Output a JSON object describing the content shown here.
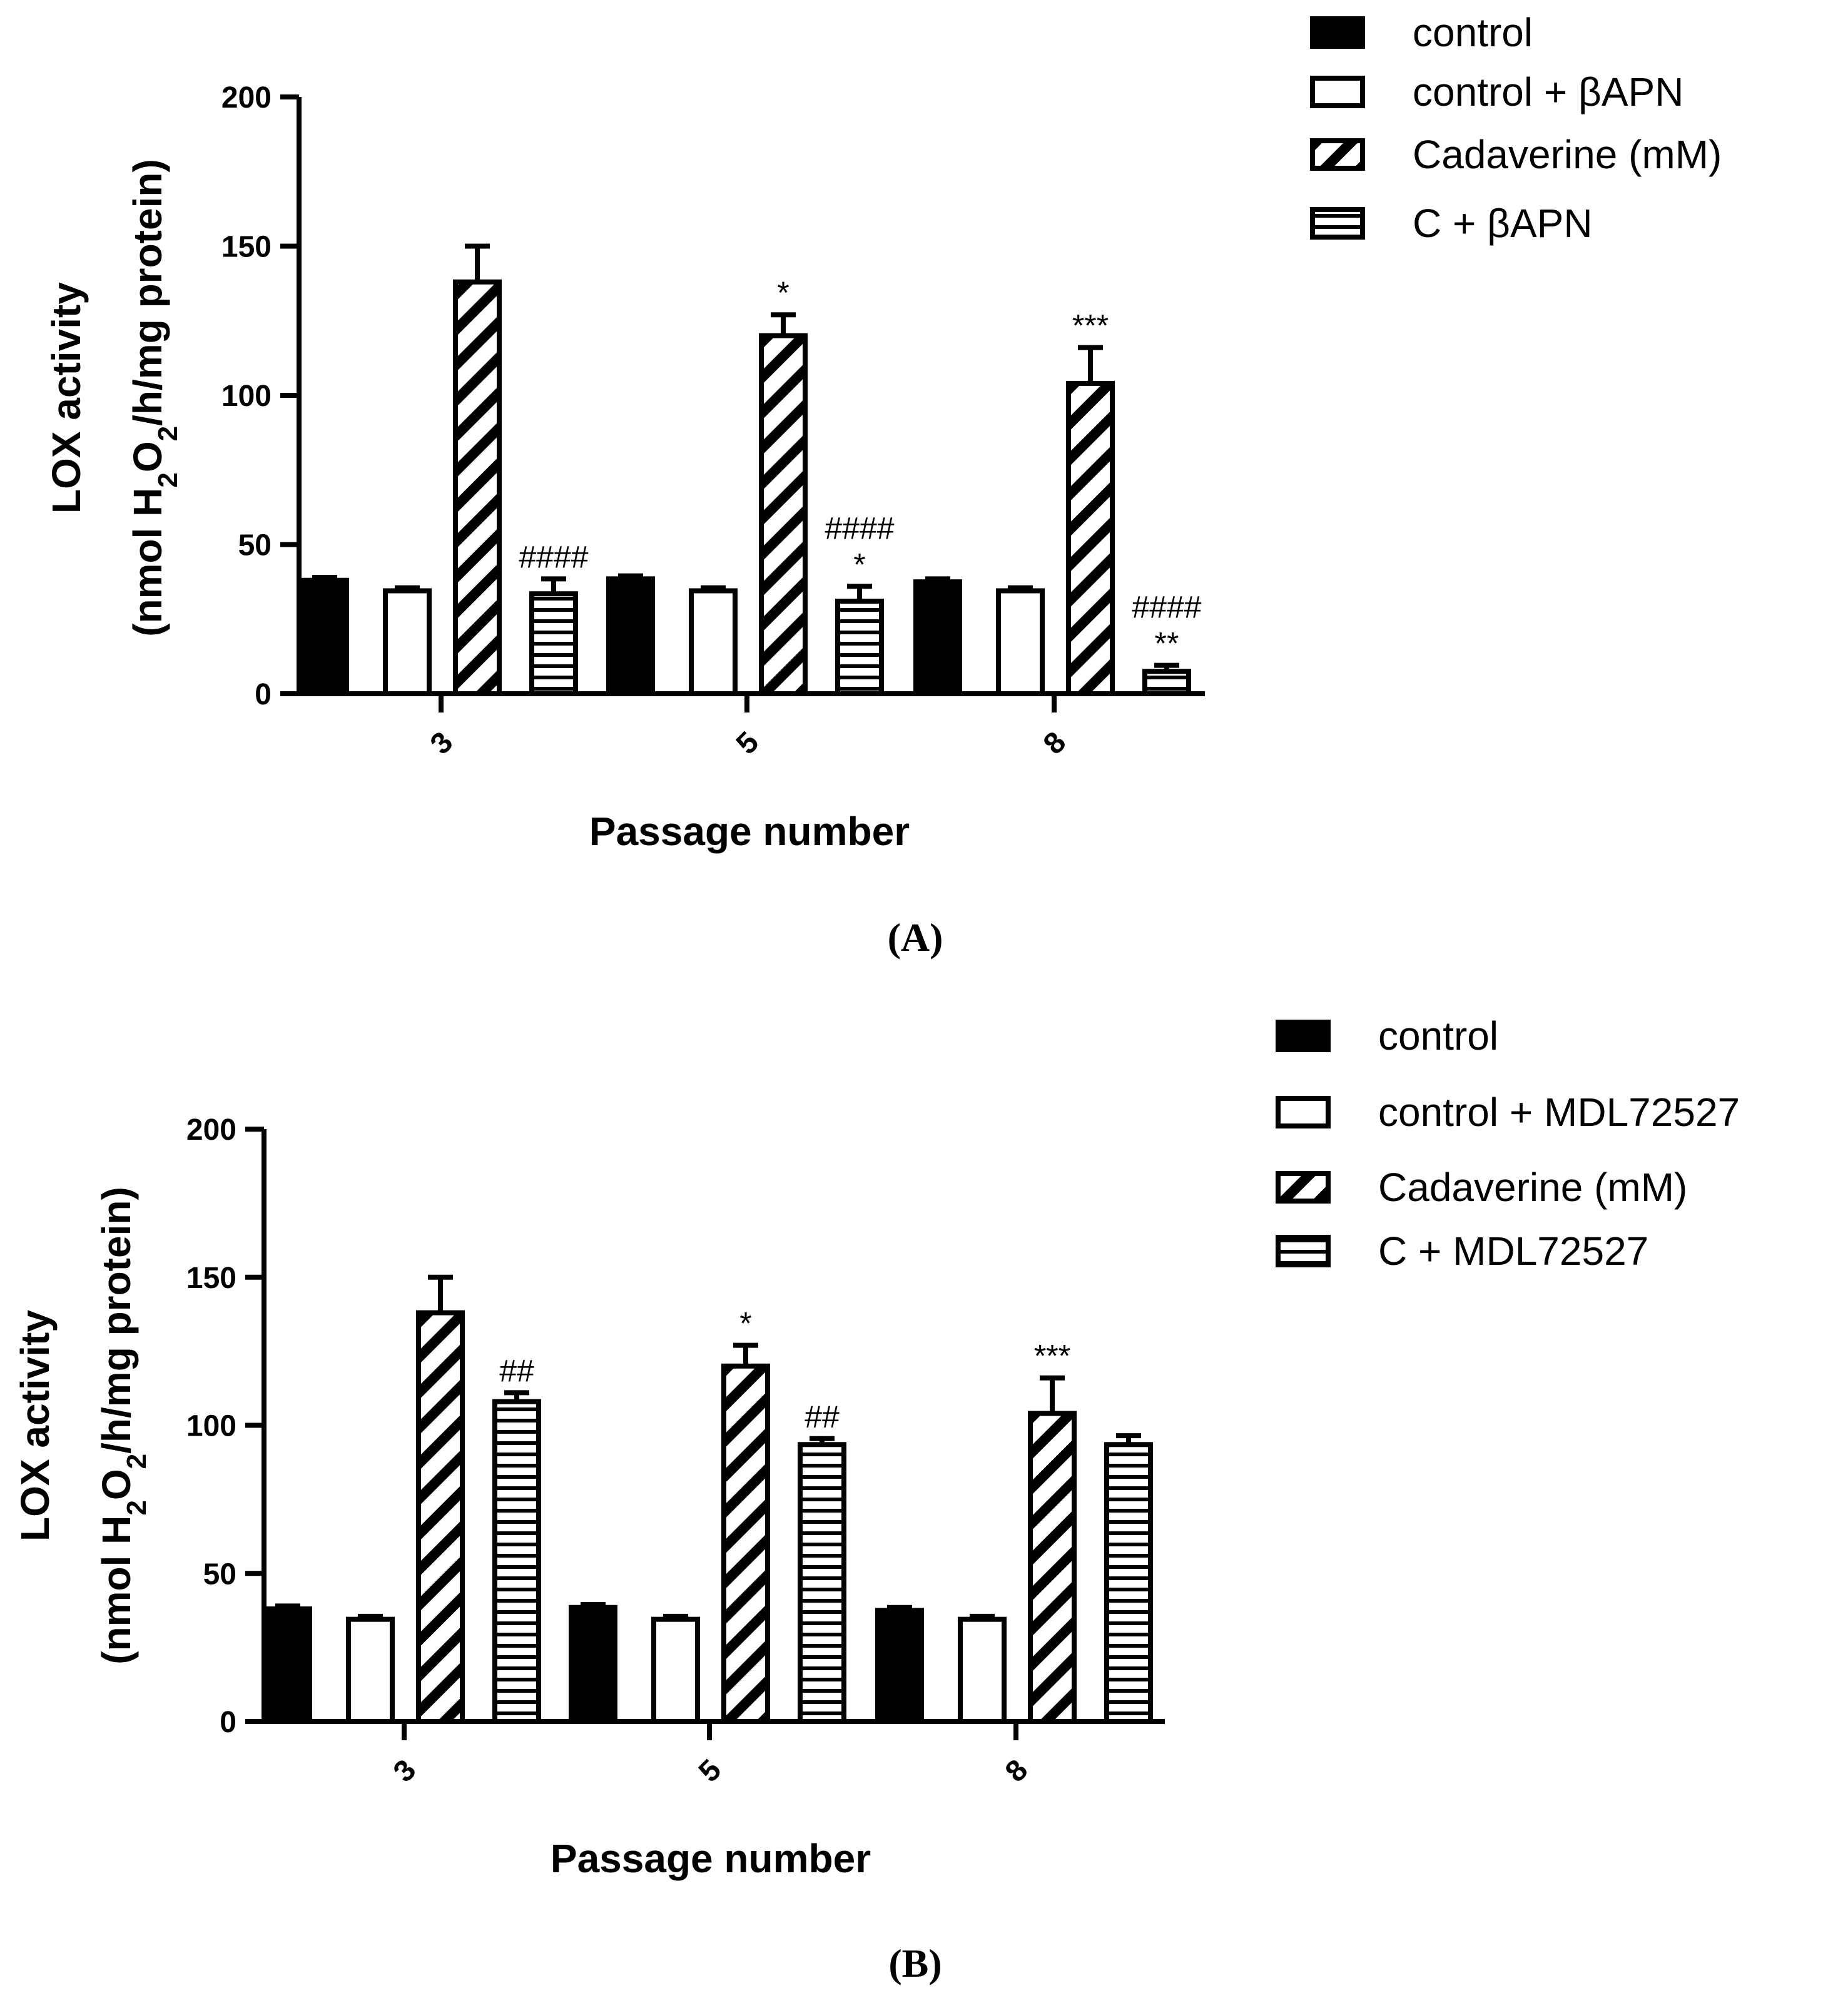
{
  "chart_data": [
    {
      "type": "bar",
      "panel_label": "(A)",
      "title": "",
      "xlabel": "Passage number",
      "ylabel_line1": "LOX activity",
      "ylabel_line2": "(nmol H2O2/h/mg protein)",
      "ylim": [
        0,
        200
      ],
      "yticks": [
        "0",
        "50",
        "100",
        "150",
        "200"
      ],
      "categories": [
        "3",
        "5",
        "8"
      ],
      "series": [
        {
          "name": "control",
          "pattern": "solid",
          "values": [
            38,
            38.5,
            37.5
          ],
          "errors": [
            1,
            1,
            1
          ]
        },
        {
          "name": "control + βAPN",
          "pattern": "open",
          "values": [
            34.5,
            34.5,
            34.5
          ],
          "errors": [
            1,
            1,
            1
          ]
        },
        {
          "name": "Cadaverine (mM)",
          "pattern": "diagonal",
          "values": [
            138,
            120,
            104
          ],
          "errors": [
            12,
            7,
            12
          ]
        },
        {
          "name": "C + βAPN",
          "pattern": "horizontal",
          "values": [
            33.5,
            31,
            7.5
          ],
          "errors": [
            5,
            5,
            2
          ]
        }
      ],
      "annotations": [
        {
          "series": 2,
          "category": 1,
          "lines": [
            "*"
          ]
        },
        {
          "series": 2,
          "category": 2,
          "lines": [
            "***"
          ]
        },
        {
          "series": 3,
          "category": 0,
          "lines": [
            "####"
          ]
        },
        {
          "series": 3,
          "category": 1,
          "lines": [
            "####",
            "*"
          ]
        },
        {
          "series": 3,
          "category": 2,
          "lines": [
            "####",
            "**"
          ]
        }
      ],
      "legend_position": "top-right"
    },
    {
      "type": "bar",
      "panel_label": "(B)",
      "title": "",
      "xlabel": "Passage number",
      "ylabel_line1": "LOX activity",
      "ylabel_line2": "(nmol H2O2/h/mg protein)",
      "ylim": [
        0,
        200
      ],
      "yticks": [
        "0",
        "50",
        "100",
        "150",
        "200"
      ],
      "categories": [
        "3",
        "5",
        "8"
      ],
      "series": [
        {
          "name": "control",
          "pattern": "solid",
          "values": [
            38,
            38.5,
            37.5
          ],
          "errors": [
            1,
            1,
            1
          ]
        },
        {
          "name": "control + MDL72527",
          "pattern": "open",
          "values": [
            34.5,
            34.5,
            34.5
          ],
          "errors": [
            1,
            1,
            1
          ]
        },
        {
          "name": "Cadaverine (mM)",
          "pattern": "diagonal",
          "values": [
            138,
            120,
            104
          ],
          "errors": [
            12,
            7,
            12
          ]
        },
        {
          "name": "C + MDL72527",
          "pattern": "horizontal",
          "values": [
            108,
            93.5,
            93.5
          ],
          "errors": [
            3,
            2,
            3
          ]
        }
      ],
      "annotations": [
        {
          "series": 2,
          "category": 1,
          "lines": [
            "*"
          ]
        },
        {
          "series": 2,
          "category": 2,
          "lines": [
            "***"
          ]
        },
        {
          "series": 3,
          "category": 0,
          "lines": [
            "##"
          ]
        },
        {
          "series": 3,
          "category": 1,
          "lines": [
            "##"
          ]
        }
      ],
      "legend_position": "top-right"
    }
  ]
}
